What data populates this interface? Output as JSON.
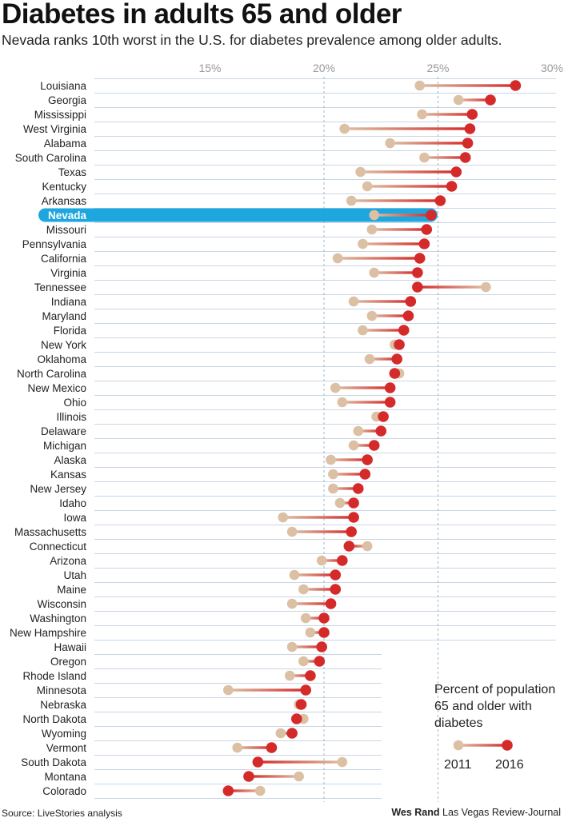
{
  "title": "Diabetes in adults 65 and older",
  "subtitle": "Nevada ranks 10th worst in the U.S. for diabetes prevalence among older adults.",
  "legend": {
    "title": "Percent of population 65 and older with diabetes",
    "year1": "2011",
    "year2": "2016"
  },
  "source": "Source: LiveStories analysis",
  "credit_name": "Wes Rand",
  "credit_org": "Las Vegas Review-Journal",
  "colors": {
    "color_2011": "#dcc0a4",
    "color_2016": "#d42a2a",
    "highlight": "#1ea6df",
    "gridline": "#c9d6e4",
    "major_gridline": "#9fb6cc"
  },
  "chart_data": {
    "type": "dumbbell",
    "title": "Diabetes in adults 65 and older",
    "xlim": [
      10,
      30
    ],
    "xticks": [
      {
        "value": 15,
        "label": "15%"
      },
      {
        "value": 20,
        "label": "20%"
      },
      {
        "value": 25,
        "label": "25%"
      },
      {
        "value": 30,
        "label": "30%"
      }
    ],
    "highlight": "Nevada",
    "rows": [
      {
        "state": "Louisiana",
        "y2011": 24.2,
        "y2016": 28.4
      },
      {
        "state": "Georgia",
        "y2011": 25.9,
        "y2016": 27.3
      },
      {
        "state": "Mississippi",
        "y2011": 24.3,
        "y2016": 26.5
      },
      {
        "state": "West Virginia",
        "y2011": 20.9,
        "y2016": 26.4
      },
      {
        "state": "Alabama",
        "y2011": 22.9,
        "y2016": 26.3
      },
      {
        "state": "South Carolina",
        "y2011": 24.4,
        "y2016": 26.2
      },
      {
        "state": "Texas",
        "y2011": 21.6,
        "y2016": 25.8
      },
      {
        "state": "Kentucky",
        "y2011": 21.9,
        "y2016": 25.6
      },
      {
        "state": "Arkansas",
        "y2011": 21.2,
        "y2016": 25.1
      },
      {
        "state": "Nevada",
        "y2011": 22.2,
        "y2016": 24.7
      },
      {
        "state": "Missouri",
        "y2011": 22.1,
        "y2016": 24.5
      },
      {
        "state": "Pennsylvania",
        "y2011": 21.7,
        "y2016": 24.4
      },
      {
        "state": "California",
        "y2011": 20.6,
        "y2016": 24.2
      },
      {
        "state": "Virginia",
        "y2011": 22.2,
        "y2016": 24.1
      },
      {
        "state": "Tennessee",
        "y2011": 27.1,
        "y2016": 24.1
      },
      {
        "state": "Indiana",
        "y2011": 21.3,
        "y2016": 23.8
      },
      {
        "state": "Maryland",
        "y2011": 22.1,
        "y2016": 23.7
      },
      {
        "state": "Florida",
        "y2011": 21.7,
        "y2016": 23.5
      },
      {
        "state": "New York",
        "y2011": 23.1,
        "y2016": 23.3
      },
      {
        "state": "Oklahoma",
        "y2011": 22.0,
        "y2016": 23.2
      },
      {
        "state": "North Carolina",
        "y2011": 23.3,
        "y2016": 23.1
      },
      {
        "state": "New Mexico",
        "y2011": 20.5,
        "y2016": 22.9
      },
      {
        "state": "Ohio",
        "y2011": 20.8,
        "y2016": 22.9
      },
      {
        "state": "Illinois",
        "y2011": 22.3,
        "y2016": 22.6
      },
      {
        "state": "Delaware",
        "y2011": 21.5,
        "y2016": 22.5
      },
      {
        "state": "Michigan",
        "y2011": 21.3,
        "y2016": 22.2
      },
      {
        "state": "Alaska",
        "y2011": 20.3,
        "y2016": 21.9
      },
      {
        "state": "Kansas",
        "y2011": 20.4,
        "y2016": 21.8
      },
      {
        "state": "New Jersey",
        "y2011": 20.4,
        "y2016": 21.5
      },
      {
        "state": "Idaho",
        "y2011": 20.7,
        "y2016": 21.3
      },
      {
        "state": "Iowa",
        "y2011": 18.2,
        "y2016": 21.3
      },
      {
        "state": "Massachusetts",
        "y2011": 18.6,
        "y2016": 21.2
      },
      {
        "state": "Connecticut",
        "y2011": 21.9,
        "y2016": 21.1
      },
      {
        "state": "Arizona",
        "y2011": 19.9,
        "y2016": 20.8
      },
      {
        "state": "Utah",
        "y2011": 18.7,
        "y2016": 20.5
      },
      {
        "state": "Maine",
        "y2011": 19.1,
        "y2016": 20.5
      },
      {
        "state": "Wisconsin",
        "y2011": 18.6,
        "y2016": 20.3
      },
      {
        "state": "Washington",
        "y2011": 19.2,
        "y2016": 20.0
      },
      {
        "state": "New Hampshire",
        "y2011": 19.4,
        "y2016": 20.0
      },
      {
        "state": "Hawaii",
        "y2011": 18.6,
        "y2016": 19.9
      },
      {
        "state": "Oregon",
        "y2011": 19.1,
        "y2016": 19.8
      },
      {
        "state": "Rhode Island",
        "y2011": 18.5,
        "y2016": 19.4
      },
      {
        "state": "Minnesota",
        "y2011": 15.8,
        "y2016": 19.2
      },
      {
        "state": "Nebraska",
        "y2011": 18.9,
        "y2016": 19.0
      },
      {
        "state": "North Dakota",
        "y2011": 19.1,
        "y2016": 18.8
      },
      {
        "state": "Wyoming",
        "y2011": 18.1,
        "y2016": 18.6
      },
      {
        "state": "Vermont",
        "y2011": 16.2,
        "y2016": 17.7
      },
      {
        "state": "South Dakota",
        "y2011": 20.8,
        "y2016": 17.1
      },
      {
        "state": "Montana",
        "y2011": 18.9,
        "y2016": 16.7
      },
      {
        "state": "Colorado",
        "y2011": 17.2,
        "y2016": 15.8
      }
    ]
  }
}
